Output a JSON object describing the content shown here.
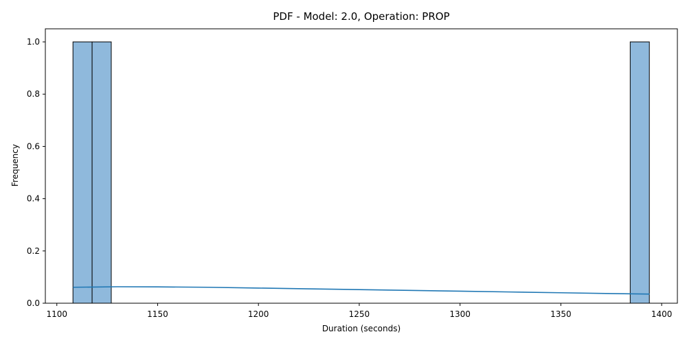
{
  "chart_data": {
    "type": "bar",
    "title": "PDF - Model: 2.0, Operation: PROP",
    "xlabel": "Duration (seconds)",
    "ylabel": "Frequency",
    "xlim": [
      1094.3,
      1407.8
    ],
    "ylim": [
      0,
      1.05
    ],
    "xticks": [
      1100,
      1150,
      1200,
      1250,
      1300,
      1350,
      1400
    ],
    "yticks": [
      0.0,
      0.2,
      0.4,
      0.6,
      0.8,
      1.0
    ],
    "xtick_labels": [
      "1100",
      "1150",
      "1200",
      "1250",
      "1300",
      "1350",
      "1400"
    ],
    "ytick_labels": [
      "0.0",
      "0.2",
      "0.4",
      "0.6",
      "0.8",
      "1.0"
    ],
    "bins": [
      {
        "x0": 1108.0,
        "x1": 1117.5,
        "count": 1
      },
      {
        "x0": 1117.5,
        "x1": 1127.0,
        "count": 1
      },
      {
        "x0": 1384.4,
        "x1": 1393.9,
        "count": 1
      }
    ],
    "kde": {
      "x": [
        1108,
        1130,
        1150,
        1175,
        1200,
        1225,
        1250,
        1275,
        1300,
        1325,
        1350,
        1375,
        1394
      ],
      "y": [
        0.061,
        0.063,
        0.0625,
        0.061,
        0.058,
        0.055,
        0.052,
        0.049,
        0.046,
        0.043,
        0.04,
        0.037,
        0.035
      ]
    },
    "bar_color": "#8fb9dc",
    "bar_edge_color": "#000000",
    "kde_color": "#1f77b4",
    "grid": false,
    "legend": false
  }
}
